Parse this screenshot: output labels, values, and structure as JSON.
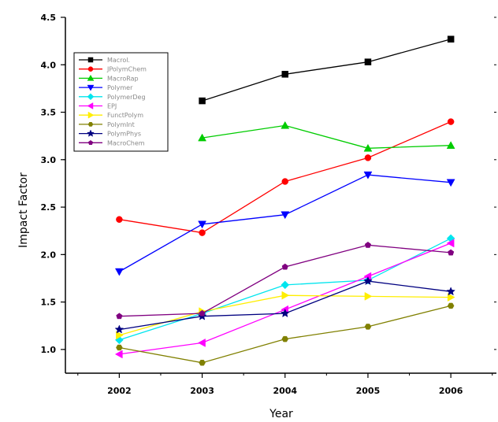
{
  "chart_data": {
    "type": "line",
    "xlabel": "Year",
    "ylabel": "Impact Factor",
    "x": [
      2002,
      2003,
      2004,
      2005,
      2006
    ],
    "xticks": [
      "2002",
      "2003",
      "2004",
      "2005",
      "2006"
    ],
    "yticks": [
      "1.0",
      "1.5",
      "2.0",
      "2.5",
      "3.0",
      "3.5",
      "4.0",
      "4.5"
    ],
    "xlim": [
      2001.35,
      2006.55
    ],
    "ylim": [
      0.75,
      4.5
    ],
    "grid": false,
    "legend_position": "top-left",
    "series": [
      {
        "name": "Macrol.",
        "color": "#000000",
        "marker": "square",
        "values": [
          null,
          3.62,
          3.9,
          4.03,
          4.27
        ]
      },
      {
        "name": "JPolymChem",
        "color": "#ff0000",
        "marker": "circle",
        "values": [
          2.37,
          2.23,
          2.77,
          3.02,
          3.4
        ]
      },
      {
        "name": "MacroRap",
        "color": "#00cc00",
        "marker": "triangle-up",
        "values": [
          null,
          3.23,
          3.36,
          3.12,
          3.15
        ]
      },
      {
        "name": "Polymer",
        "color": "#0000ff",
        "marker": "triangle-down",
        "values": [
          1.82,
          2.32,
          2.42,
          2.84,
          2.76
        ]
      },
      {
        "name": "PolymerDeg",
        "color": "#00e5ee",
        "marker": "diamond",
        "values": [
          1.1,
          1.38,
          1.68,
          1.73,
          2.17
        ]
      },
      {
        "name": "EPJ",
        "color": "#ff00ff",
        "marker": "triangle-left",
        "values": [
          0.95,
          1.07,
          1.42,
          1.77,
          2.12
        ]
      },
      {
        "name": "FunctPolym",
        "color": "#ffee00",
        "marker": "triangle-right",
        "values": [
          1.15,
          1.4,
          1.57,
          1.56,
          1.55
        ]
      },
      {
        "name": "PolymInt",
        "color": "#808000",
        "marker": "hexagon",
        "values": [
          1.02,
          0.86,
          1.11,
          1.24,
          1.46
        ]
      },
      {
        "name": "PolymPhys",
        "color": "#000080",
        "marker": "star",
        "values": [
          1.21,
          1.35,
          1.38,
          1.72,
          1.61
        ]
      },
      {
        "name": "MacroChem",
        "color": "#800080",
        "marker": "pentagon",
        "values": [
          1.35,
          1.38,
          1.87,
          2.1,
          2.02
        ]
      }
    ]
  }
}
